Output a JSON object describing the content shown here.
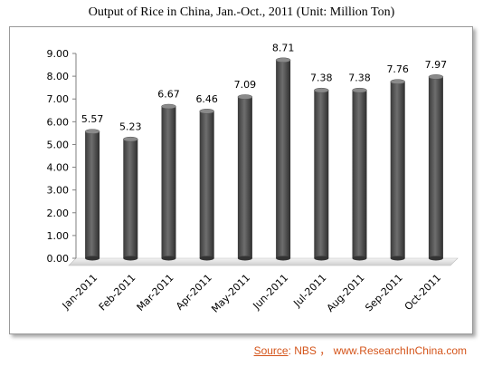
{
  "chart_data": {
    "type": "bar",
    "title": "Output of Rice in China, Jan.-Oct., 2011  (Unit: Million Ton)",
    "categories": [
      "Jan-2011",
      "Feb-2011",
      "Mar-2011",
      "Apr-2011",
      "May-2011",
      "Jun-2011",
      "Jul-2011",
      "Aug-2011",
      "Sep-2011",
      "Oct-2011"
    ],
    "values": [
      5.57,
      5.23,
      6.67,
      6.46,
      7.09,
      8.71,
      7.38,
      7.38,
      7.76,
      7.97
    ],
    "value_labels": [
      "5.57",
      "5.23",
      "6.67",
      "6.46",
      "7.09",
      "8.71",
      "7.38",
      "7.38",
      "7.76",
      "7.97"
    ],
    "yticks": [
      "0.00",
      "1.00",
      "2.00",
      "3.00",
      "4.00",
      "5.00",
      "6.00",
      "7.00",
      "8.00",
      "9.00"
    ],
    "ylim": [
      0,
      9
    ],
    "grid": false,
    "bar_color": "#4d4d4d"
  },
  "source": {
    "key": "Source",
    "text": ": NBS ， www.ResearchInChina.com"
  }
}
